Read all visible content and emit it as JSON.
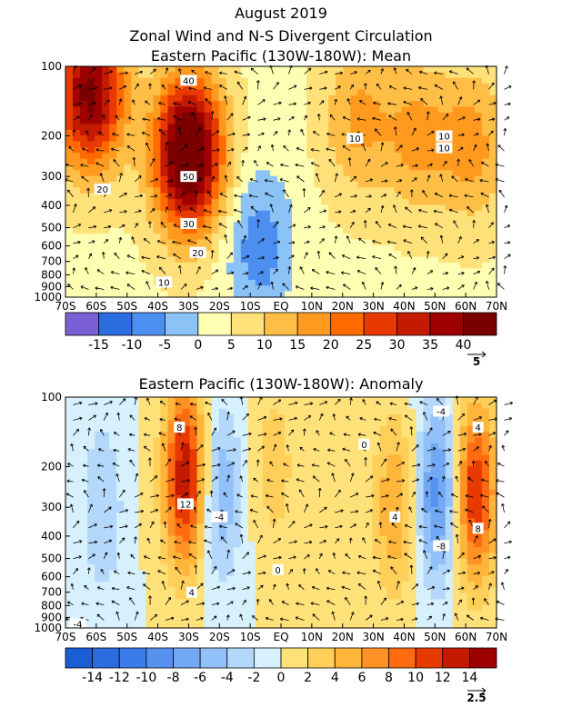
{
  "figure": {
    "title_line1": "August 2019",
    "title_line2": "Zonal Wind and N-S Divergent Circulation"
  },
  "chart_data": [
    {
      "type": "heatmap",
      "title": "Eastern Pacific (130W-180W): Mean",
      "xlabel": "",
      "ylabel": "",
      "x_ticks": [
        "70S",
        "60S",
        "50S",
        "40S",
        "30S",
        "20S",
        "10S",
        "EQ",
        "10N",
        "20N",
        "30N",
        "40N",
        "50N",
        "60N",
        "70N"
      ],
      "x_values": [
        -70,
        -60,
        -50,
        -40,
        -30,
        -20,
        -10,
        0,
        10,
        20,
        30,
        40,
        50,
        60,
        70
      ],
      "y_ticks": [
        "100",
        "200",
        "300",
        "400",
        "500",
        "600",
        "700",
        "800",
        "900",
        "1000"
      ],
      "y_values": [
        100,
        200,
        300,
        400,
        500,
        600,
        700,
        800,
        900,
        1000
      ],
      "y_scale": "log",
      "colorbar_labels": [
        "-15",
        "-10",
        "-5",
        "0",
        "5",
        "10",
        "15",
        "20",
        "25",
        "30",
        "35",
        "40"
      ],
      "colorbar_colors": [
        "#7b5fd6",
        "#2b6ce0",
        "#4d8ff0",
        "#8cc3f7",
        "#ffffb4",
        "#ffe17a",
        "#ffbf47",
        "#ff9a1f",
        "#ff6b00",
        "#e83a00",
        "#c41a00",
        "#9e0000",
        "#7a0000"
      ],
      "vector_reference": "5",
      "contour_labels": [
        {
          "text": "40",
          "lat": -30,
          "p": 115
        },
        {
          "text": "50",
          "lat": -30,
          "p": 300
        },
        {
          "text": "30",
          "lat": -30,
          "p": 480
        },
        {
          "text": "20",
          "lat": -27,
          "p": 640
        },
        {
          "text": "20",
          "lat": -58,
          "p": 340
        },
        {
          "text": "10",
          "lat": -38,
          "p": 860
        },
        {
          "text": "10",
          "lat": 24,
          "p": 205
        },
        {
          "text": "10",
          "lat": 53,
          "p": 200
        },
        {
          "text": "10",
          "lat": 53,
          "p": 225
        }
      ],
      "field_features": [
        {
          "center_lat": -30,
          "center_p": 240,
          "peak": 48
        },
        {
          "center_lat": -62,
          "center_p": 130,
          "peak": 38
        },
        {
          "center_lat": -7,
          "center_p": 600,
          "peak": -12
        },
        {
          "center_lat": 25,
          "center_p": 170,
          "peak": 12
        },
        {
          "center_lat": 44,
          "center_p": 200,
          "peak": 12
        },
        {
          "center_lat": 62,
          "center_p": 220,
          "peak": 13
        }
      ]
    },
    {
      "type": "heatmap",
      "title": "Eastern Pacific (130W-180W): Anomaly",
      "xlabel": "",
      "ylabel": "",
      "x_ticks": [
        "70S",
        "60S",
        "50S",
        "40S",
        "30S",
        "20S",
        "10S",
        "EQ",
        "10N",
        "20N",
        "30N",
        "40N",
        "50N",
        "60N",
        "70N"
      ],
      "x_values": [
        -70,
        -60,
        -50,
        -40,
        -30,
        -20,
        -10,
        0,
        10,
        20,
        30,
        40,
        50,
        60,
        70
      ],
      "y_ticks": [
        "100",
        "200",
        "300",
        "400",
        "500",
        "600",
        "700",
        "800",
        "900",
        "1000"
      ],
      "y_values": [
        100,
        200,
        300,
        400,
        500,
        600,
        700,
        800,
        900,
        1000
      ],
      "y_scale": "log",
      "colorbar_labels": [
        "-14",
        "-12",
        "-10",
        "-8",
        "-6",
        "-4",
        "-2",
        "0",
        "2",
        "4",
        "6",
        "8",
        "10",
        "12",
        "14"
      ],
      "colorbar_colors": [
        "#1a5ed6",
        "#2b6ce0",
        "#3b7ce8",
        "#5592f0",
        "#72a8f4",
        "#92c0f8",
        "#b4d8fb",
        "#d6f0fd",
        "#ffe17a",
        "#ffcf5a",
        "#ffb43a",
        "#ff9224",
        "#ff6b10",
        "#e83a00",
        "#c41a00",
        "#9e0000"
      ],
      "vector_reference": "2.5",
      "contour_labels": [
        {
          "text": "8",
          "lat": -33,
          "p": 135
        },
        {
          "text": "12",
          "lat": -31,
          "p": 290
        },
        {
          "text": "4",
          "lat": -29,
          "p": 700
        },
        {
          "text": "-4",
          "lat": -20,
          "p": 330
        },
        {
          "text": "0",
          "lat": -1,
          "p": 560
        },
        {
          "text": "4",
          "lat": 37,
          "p": 330
        },
        {
          "text": "-4",
          "lat": 52,
          "p": 115
        },
        {
          "text": "-8",
          "lat": 52,
          "p": 440
        },
        {
          "text": "4",
          "lat": 64,
          "p": 135
        },
        {
          "text": "8",
          "lat": 64,
          "p": 370
        },
        {
          "text": "0",
          "lat": 27,
          "p": 160
        },
        {
          "text": "-4",
          "lat": -66,
          "p": 960
        }
      ],
      "field_features": [
        {
          "center_lat": -31,
          "center_p": 220,
          "peak": 14
        },
        {
          "center_lat": -20,
          "center_p": 260,
          "peak": -6
        },
        {
          "center_lat": -58,
          "center_p": 300,
          "peak": -4
        },
        {
          "center_lat": -2,
          "center_p": 200,
          "peak": 3
        },
        {
          "center_lat": 37,
          "center_p": 300,
          "peak": 6
        },
        {
          "center_lat": 51,
          "center_p": 260,
          "peak": -9
        },
        {
          "center_lat": 63,
          "center_p": 260,
          "peak": 12
        }
      ]
    }
  ]
}
